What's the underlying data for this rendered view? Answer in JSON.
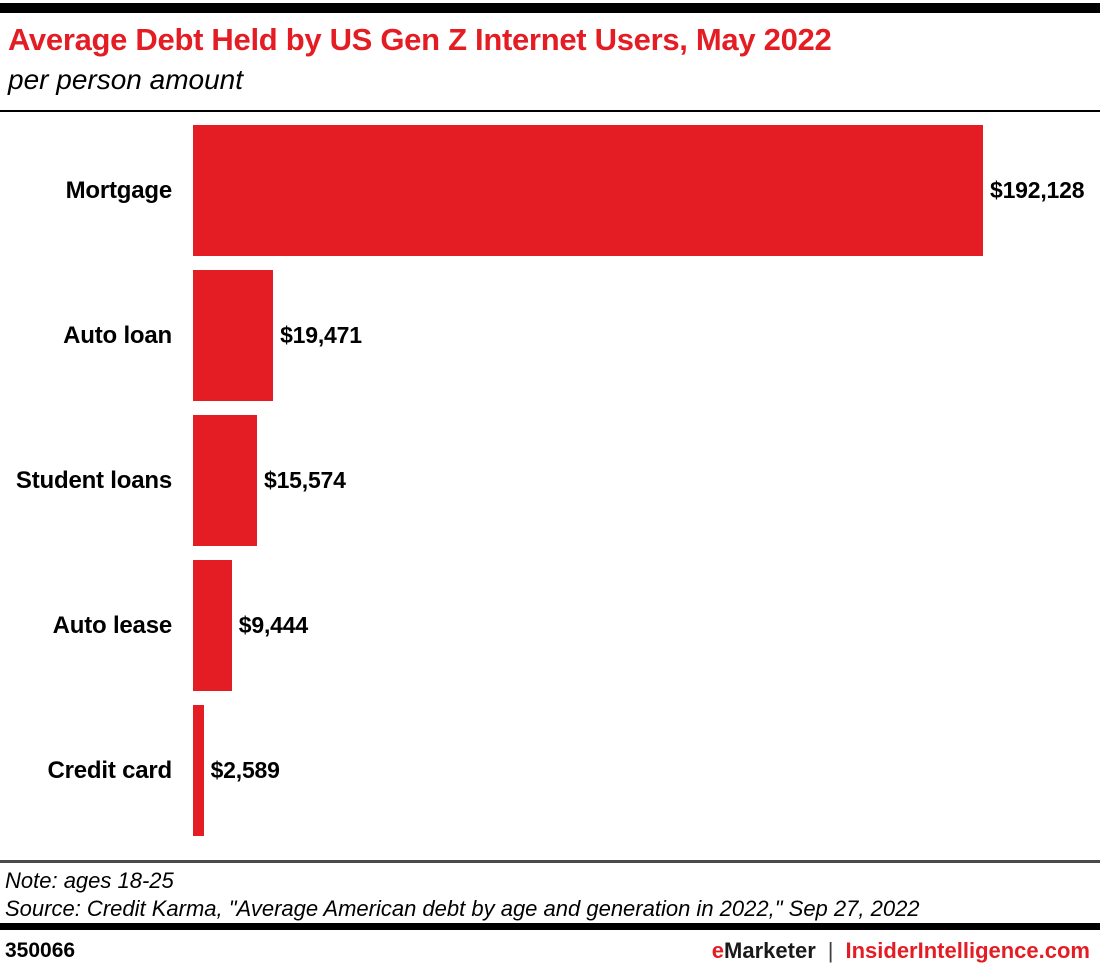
{
  "header": {
    "title": "Average Debt Held by US Gen Z Internet Users, May 2022",
    "subtitle": "per person amount"
  },
  "chart_data": {
    "type": "bar",
    "orientation": "horizontal",
    "title": "Average Debt Held by US Gen Z Internet Users, May 2022",
    "subtitle": "per person amount",
    "categories": [
      "Mortgage",
      "Auto loan",
      "Student loans",
      "Auto lease",
      "Credit card"
    ],
    "values": [
      192128,
      19471,
      15574,
      9444,
      2589
    ],
    "value_labels": [
      "$192,128",
      "$19,471",
      "$15,574",
      "$9,444",
      "$2,589"
    ],
    "xlabel": "",
    "ylabel": "",
    "xlim": [
      0,
      192128
    ],
    "grid": false,
    "legend": null,
    "bar_color": "#e41d24"
  },
  "notes": {
    "note": "Note: ages 18-25",
    "source": "Source: Credit Karma, \"Average American debt by age and generation in 2022,\" Sep 27, 2022"
  },
  "footer": {
    "chart_id": "350066",
    "brand_emarketer_e": "e",
    "brand_emarketer_rest": "Marketer",
    "brand_separator": "|",
    "brand_site": "InsiderIntelligence.com"
  },
  "colors": {
    "accent_red": "#e41d24",
    "divider_gray": "#4a4a4a",
    "bar_black": "#000000"
  }
}
